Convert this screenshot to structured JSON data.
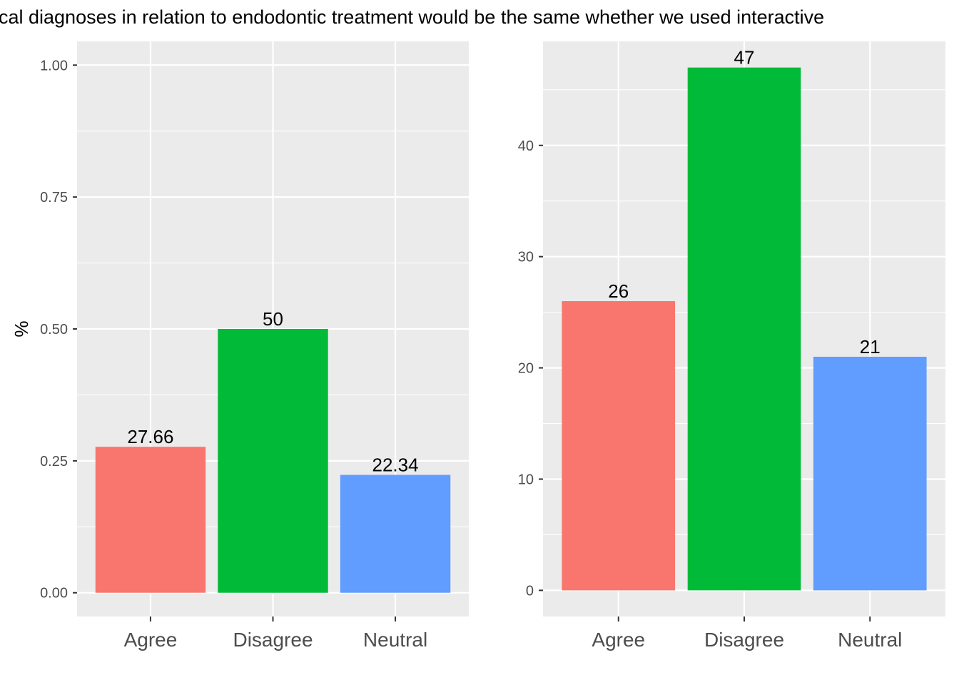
{
  "title": "ical diagnoses in relation to endodontic treatment would be the same whether we used interactive",
  "colors": {
    "panel_bg": "#EBEBEB",
    "grid": "#FFFFFF",
    "agree": "#F8766D",
    "disagree": "#00BA38",
    "neutral": "#619CFF"
  },
  "chart_data": [
    {
      "type": "bar",
      "categories": [
        "Agree",
        "Disagree",
        "Neutral"
      ],
      "values": [
        0.2766,
        0.5,
        0.2234
      ],
      "data_labels": [
        "27.66",
        "50",
        "22.34"
      ],
      "ylabel": "%",
      "xlabel": "",
      "ylim": [
        -0.045,
        1.045
      ],
      "yticks": [
        0.0,
        0.25,
        0.5,
        0.75,
        1.0
      ],
      "ytick_labels": [
        "0.00",
        "0.25",
        "0.50",
        "0.75",
        "1.00"
      ],
      "grid": true,
      "legend": "none"
    },
    {
      "type": "bar",
      "categories": [
        "Agree",
        "Disagree",
        "Neutral"
      ],
      "values": [
        26,
        47,
        21
      ],
      "data_labels": [
        "26",
        "47",
        "21"
      ],
      "ylabel": "",
      "xlabel": "",
      "ylim": [
        -2.35,
        49.35
      ],
      "yticks": [
        0,
        10,
        20,
        30,
        40
      ],
      "ytick_labels": [
        "0",
        "10",
        "20",
        "30",
        "40"
      ],
      "grid": true,
      "legend": "none"
    }
  ]
}
